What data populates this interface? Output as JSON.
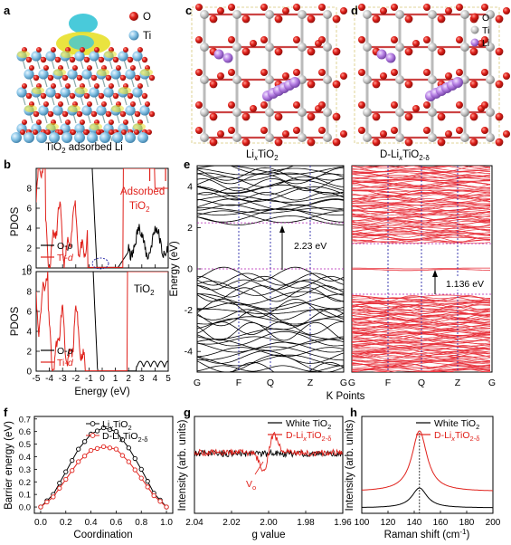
{
  "panels": {
    "a": {
      "letter": "a",
      "caption_main": "TiO",
      "caption_sub": "2",
      "caption_rest": " adsorbed Li",
      "legend": [
        "O",
        "Ti"
      ],
      "colors": {
        "O": "#e0211b",
        "Ti": "#86c3e6",
        "density_cyan": "#3fc7d8",
        "density_yellow": "#e8e02a"
      }
    },
    "b": {
      "letter": "b",
      "top_annotation_line1": "Adsorbed",
      "top_annotation_line2_main": "TiO",
      "top_annotation_line2_sub": "2",
      "bottom_annotation_main": "TiO",
      "bottom_annotation_sub": "2",
      "ylabel": "PDOS",
      "xlabel": "Energy (eV)",
      "legend": [
        {
          "name_main": "O-",
          "name_it": "p",
          "color": "#000000"
        },
        {
          "name_main": "Ti-",
          "name_it": "d",
          "color": "#e0211b"
        }
      ],
      "yticks": [
        "0",
        "2",
        "4",
        "6",
        "8",
        "10"
      ],
      "xticks": [
        "-5",
        "-4",
        "-3",
        "-2",
        "-1",
        "0",
        "1",
        "2",
        "3",
        "4",
        "5"
      ]
    },
    "c": {
      "letter": "c",
      "caption_a": "Li",
      "caption_a_sub": "x",
      "caption_b": "TiO",
      "caption_b_sub": "2"
    },
    "d": {
      "letter": "d",
      "legend": [
        "O",
        "Ti",
        "Li"
      ],
      "colors": {
        "O": "#e0211b",
        "Ti": "#c9c9c9",
        "Li": "#b57ee3"
      },
      "caption_a": "D-Li",
      "caption_a_sub": "x",
      "caption_b": "TiO",
      "caption_b_sub": "2-δ"
    },
    "e": {
      "letter": "e",
      "ylabel": "Energy (eV)",
      "xlabel": "K Points",
      "yticks": [
        "-4",
        "-2",
        "0",
        "2",
        "4"
      ],
      "kpoints": [
        "G",
        "F",
        "Q",
        "Z",
        "G"
      ],
      "gap_left": "2.23 eV",
      "gap_right": "1.136 eV",
      "colors": {
        "left": "#000000",
        "right": "#e8323c",
        "kline": "#2a2aa8",
        "level": "#b21fb2"
      }
    },
    "f": {
      "letter": "f",
      "ylabel": "Barrier energy (eV)",
      "xlabel": "Coordination",
      "yticks": [
        "0.0",
        "0.1",
        "0.2",
        "0.3",
        "0.4",
        "0.5",
        "0.6",
        "0.7"
      ],
      "xticks": [
        "0.0",
        "0.2",
        "0.4",
        "0.6",
        "0.8",
        "1.0"
      ],
      "legend": [
        {
          "a": "Li",
          "a_sub": "x",
          "b": "TiO",
          "b_sub": "2",
          "color": "#000000"
        },
        {
          "a": "D-Li",
          "a_sub": "x",
          "b": "TiO",
          "b_sub": "2-δ",
          "color": "#e0211b"
        }
      ]
    },
    "g": {
      "letter": "g",
      "ylabel": "Intensity (arb. units)",
      "xlabel": "g value",
      "xticks": [
        "2.04",
        "2.02",
        "2.00",
        "1.98",
        "1.96"
      ],
      "legend": [
        {
          "a": "White TiO",
          "a_sub": "2",
          "color": "#000000"
        },
        {
          "a": "D-Li",
          "a_sub": "x",
          "b": "TiO",
          "b_sub": "2-δ",
          "color": "#e0211b"
        }
      ],
      "annotation_main": "V",
      "annotation_sub": "o"
    },
    "h": {
      "letter": "h",
      "ylabel": "Intensity (arb. units)",
      "xlabel_main": "Raman shift (cm",
      "xlabel_sup": "-1",
      "xlabel_end": ")",
      "xticks": [
        "100",
        "120",
        "140",
        "160",
        "180",
        "200"
      ],
      "legend": [
        {
          "a": "White TiO",
          "a_sub": "2",
          "color": "#000000"
        },
        {
          "a": "D-Li",
          "a_sub": "x",
          "b": "TiO",
          "b_sub": "2-δ",
          "color": "#e0211b"
        }
      ]
    }
  },
  "chart_data": [
    {
      "panel": "f",
      "type": "line",
      "xlabel": "Coordination",
      "ylabel": "Barrier energy (eV)",
      "xlim": [
        -0.05,
        1.05
      ],
      "ylim": [
        -0.05,
        0.72
      ],
      "x": [
        0.0,
        0.1,
        0.2,
        0.3,
        0.4,
        0.5,
        0.6,
        0.7,
        0.8,
        0.9,
        1.0
      ],
      "series": [
        {
          "name": "LixTiO2",
          "color": "#000000",
          "values": [
            0.0,
            0.1,
            0.28,
            0.46,
            0.58,
            0.63,
            0.6,
            0.47,
            0.3,
            0.11,
            0.0
          ]
        },
        {
          "name": "D-LixTiO2-δ",
          "color": "#e0211b",
          "values": [
            0.0,
            0.08,
            0.22,
            0.36,
            0.45,
            0.48,
            0.46,
            0.36,
            0.23,
            0.09,
            0.0
          ]
        }
      ]
    },
    {
      "panel": "h",
      "type": "line",
      "xlabel": "Raman shift (cm-1)",
      "ylabel": "Intensity (arb. units)",
      "xlim": [
        100,
        200
      ],
      "peak_position": 144,
      "series": [
        {
          "name": "White TiO2",
          "color": "#000000",
          "peak": 144
        },
        {
          "name": "D-LixTiO2-δ",
          "color": "#e0211b",
          "peak": 144
        }
      ]
    },
    {
      "panel": "e",
      "type": "line",
      "ylabel": "Energy (eV)",
      "ylim": [
        -5,
        5
      ],
      "band_gaps": [
        {
          "label": "2.23 eV",
          "vbm": 0.0,
          "cbm": 2.23
        },
        {
          "label": "1.136 eV",
          "vbm": 0.0,
          "cbm": 1.136
        }
      ]
    }
  ]
}
